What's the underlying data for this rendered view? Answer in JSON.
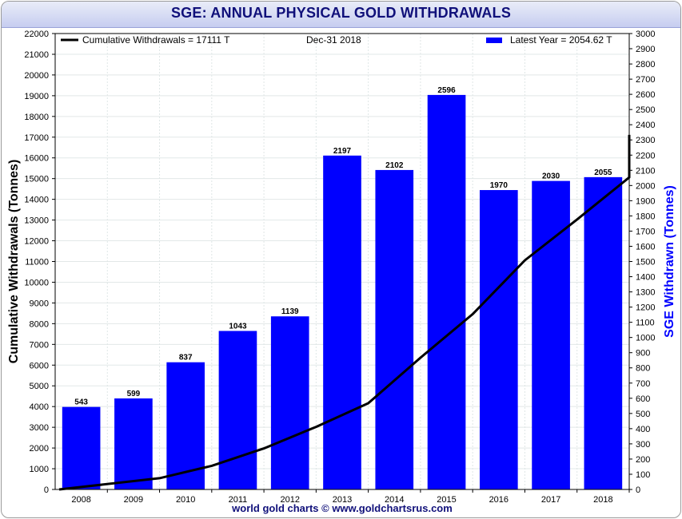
{
  "title": "SGE: ANNUAL PHYSICAL GOLD WITHDRAWALS",
  "footer": "world gold charts © www.goldchartsrus.com",
  "legend": {
    "line_label": "Cumulative Withdrawals = 17111 T",
    "date_label": "Dec-31  2018",
    "bar_label": "Latest Year = 2054.62 T"
  },
  "colors": {
    "bars": "#0000ff",
    "line": "#000000",
    "title": "#10107a"
  },
  "chart_data": {
    "type": "bar",
    "categories": [
      "2008",
      "2009",
      "2010",
      "2011",
      "2012",
      "2013",
      "2014",
      "2015",
      "2016",
      "2017",
      "2018"
    ],
    "series": [
      {
        "name": "Latest Year = 2054.62 T",
        "type": "bar",
        "axis": "right",
        "values": [
          543,
          599,
          837,
          1043,
          1139,
          2197,
          2102,
          2596,
          1970,
          2030,
          2055
        ],
        "data_labels": [
          "543",
          "599",
          "837",
          "1043",
          "1139",
          "2197",
          "2102",
          "2596",
          "1970",
          "2030",
          "2055"
        ]
      },
      {
        "name": "Cumulative Withdrawals = 17111 T",
        "type": "line",
        "axis": "left",
        "x": [
          "2007-12-31",
          "2008-12-31",
          "2009-12-31",
          "2010-12-31",
          "2011-12-31",
          "2012-12-31",
          "2013-12-31",
          "2014-12-31",
          "2015-12-31",
          "2016-12-31",
          "2017-12-31",
          "2018-12-31"
        ],
        "values": [
          0,
          543,
          1142,
          1979,
          3022,
          4161,
          6358,
          8460,
          11056,
          13026,
          15056,
          17111
        ]
      }
    ],
    "y_left": {
      "label": "Cumulative Withdrawals (Tonnes)",
      "range": [
        0,
        22000
      ],
      "step": 1000
    },
    "y_right": {
      "label": "SGE Withdrawn (Tonnes)",
      "range": [
        0,
        3000
      ],
      "step": 100
    },
    "grid": true,
    "legend_position": "top"
  }
}
